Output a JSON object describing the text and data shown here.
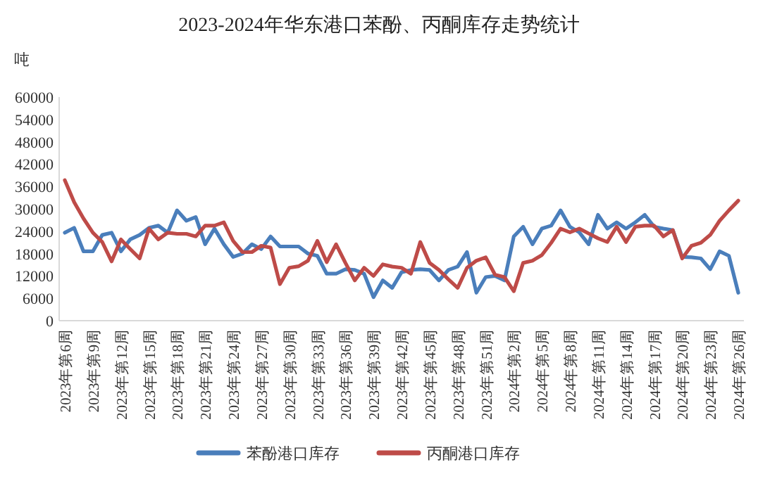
{
  "chart_data": {
    "type": "line",
    "title": "2023-2024年华东港口苯酚、丙酮库存走势统计",
    "ylabel": "吨",
    "categories": [
      "2023年第6周",
      null,
      null,
      "2023年第9周",
      null,
      null,
      "2023年第12周",
      null,
      null,
      "2023年第15周",
      null,
      null,
      "2023年第18周",
      null,
      null,
      "2023年第21周",
      null,
      null,
      "2023年第24周",
      null,
      null,
      "2023年第27周",
      null,
      null,
      "2023年第30周",
      null,
      null,
      "2023年第33周",
      null,
      null,
      "2023年第36周",
      null,
      null,
      "2023年第39周",
      null,
      null,
      "2023年第42周",
      null,
      null,
      "2023年第45周",
      null,
      null,
      "2023年第48周",
      null,
      null,
      "2023年第51周",
      null,
      null,
      "2024年第2周",
      null,
      null,
      "2024年第5周",
      null,
      null,
      "2024年第8周",
      null,
      null,
      "2024年第11周",
      null,
      null,
      "2024年第14周",
      null,
      null,
      "2024年第17周",
      null,
      null,
      "2024年第20周",
      null,
      null,
      "2024年第23周",
      null,
      null,
      "2024年第26周"
    ],
    "series": [
      {
        "name": "苯酚港口库存",
        "color": "#4a7ebb",
        "values": [
          23600,
          24900,
          18600,
          18600,
          23000,
          23600,
          18600,
          21800,
          23000,
          24900,
          25500,
          23600,
          29600,
          26800,
          27800,
          20500,
          24700,
          20500,
          17100,
          18000,
          20500,
          19200,
          22600,
          19900,
          19900,
          19900,
          18000,
          17400,
          12600,
          12600,
          13800,
          13600,
          12600,
          6300,
          10800,
          8800,
          13000,
          13600,
          13800,
          13600,
          10800,
          13600,
          14500,
          18400,
          7500,
          11700,
          12000,
          10800,
          22600,
          25200,
          20500,
          24700,
          25500,
          29600,
          25200,
          23700,
          20500,
          28400,
          24700,
          26400,
          24700,
          26400,
          28400,
          25200,
          24700,
          24300,
          17100,
          17000,
          16700,
          13800,
          18600,
          17400,
          7500
        ]
      },
      {
        "name": "丙酮港口库存",
        "color": "#be4b48",
        "values": [
          37700,
          31800,
          27400,
          23600,
          21100,
          15900,
          21800,
          19200,
          16700,
          24700,
          21800,
          23600,
          23300,
          23300,
          22600,
          25500,
          25500,
          26400,
          21400,
          18400,
          18400,
          20100,
          19600,
          9800,
          14200,
          14600,
          16100,
          21400,
          15700,
          20500,
          15500,
          10800,
          14200,
          12000,
          15100,
          14500,
          14200,
          12600,
          21100,
          15500,
          13600,
          11100,
          8800,
          14200,
          16100,
          17000,
          12300,
          11700,
          7900,
          15500,
          16100,
          17600,
          20900,
          24700,
          23700,
          24700,
          23400,
          22100,
          21100,
          25200,
          21100,
          25200,
          25500,
          25500,
          22600,
          24300,
          16700,
          20100,
          20900,
          23000,
          26800,
          29600,
          32200
        ]
      }
    ],
    "ylim": [
      0,
      60000
    ],
    "yticks": [
      0,
      6000,
      12000,
      18000,
      24000,
      30000,
      36000,
      42000,
      48000,
      54000,
      60000
    ],
    "legend": "bottom",
    "grid": false
  }
}
